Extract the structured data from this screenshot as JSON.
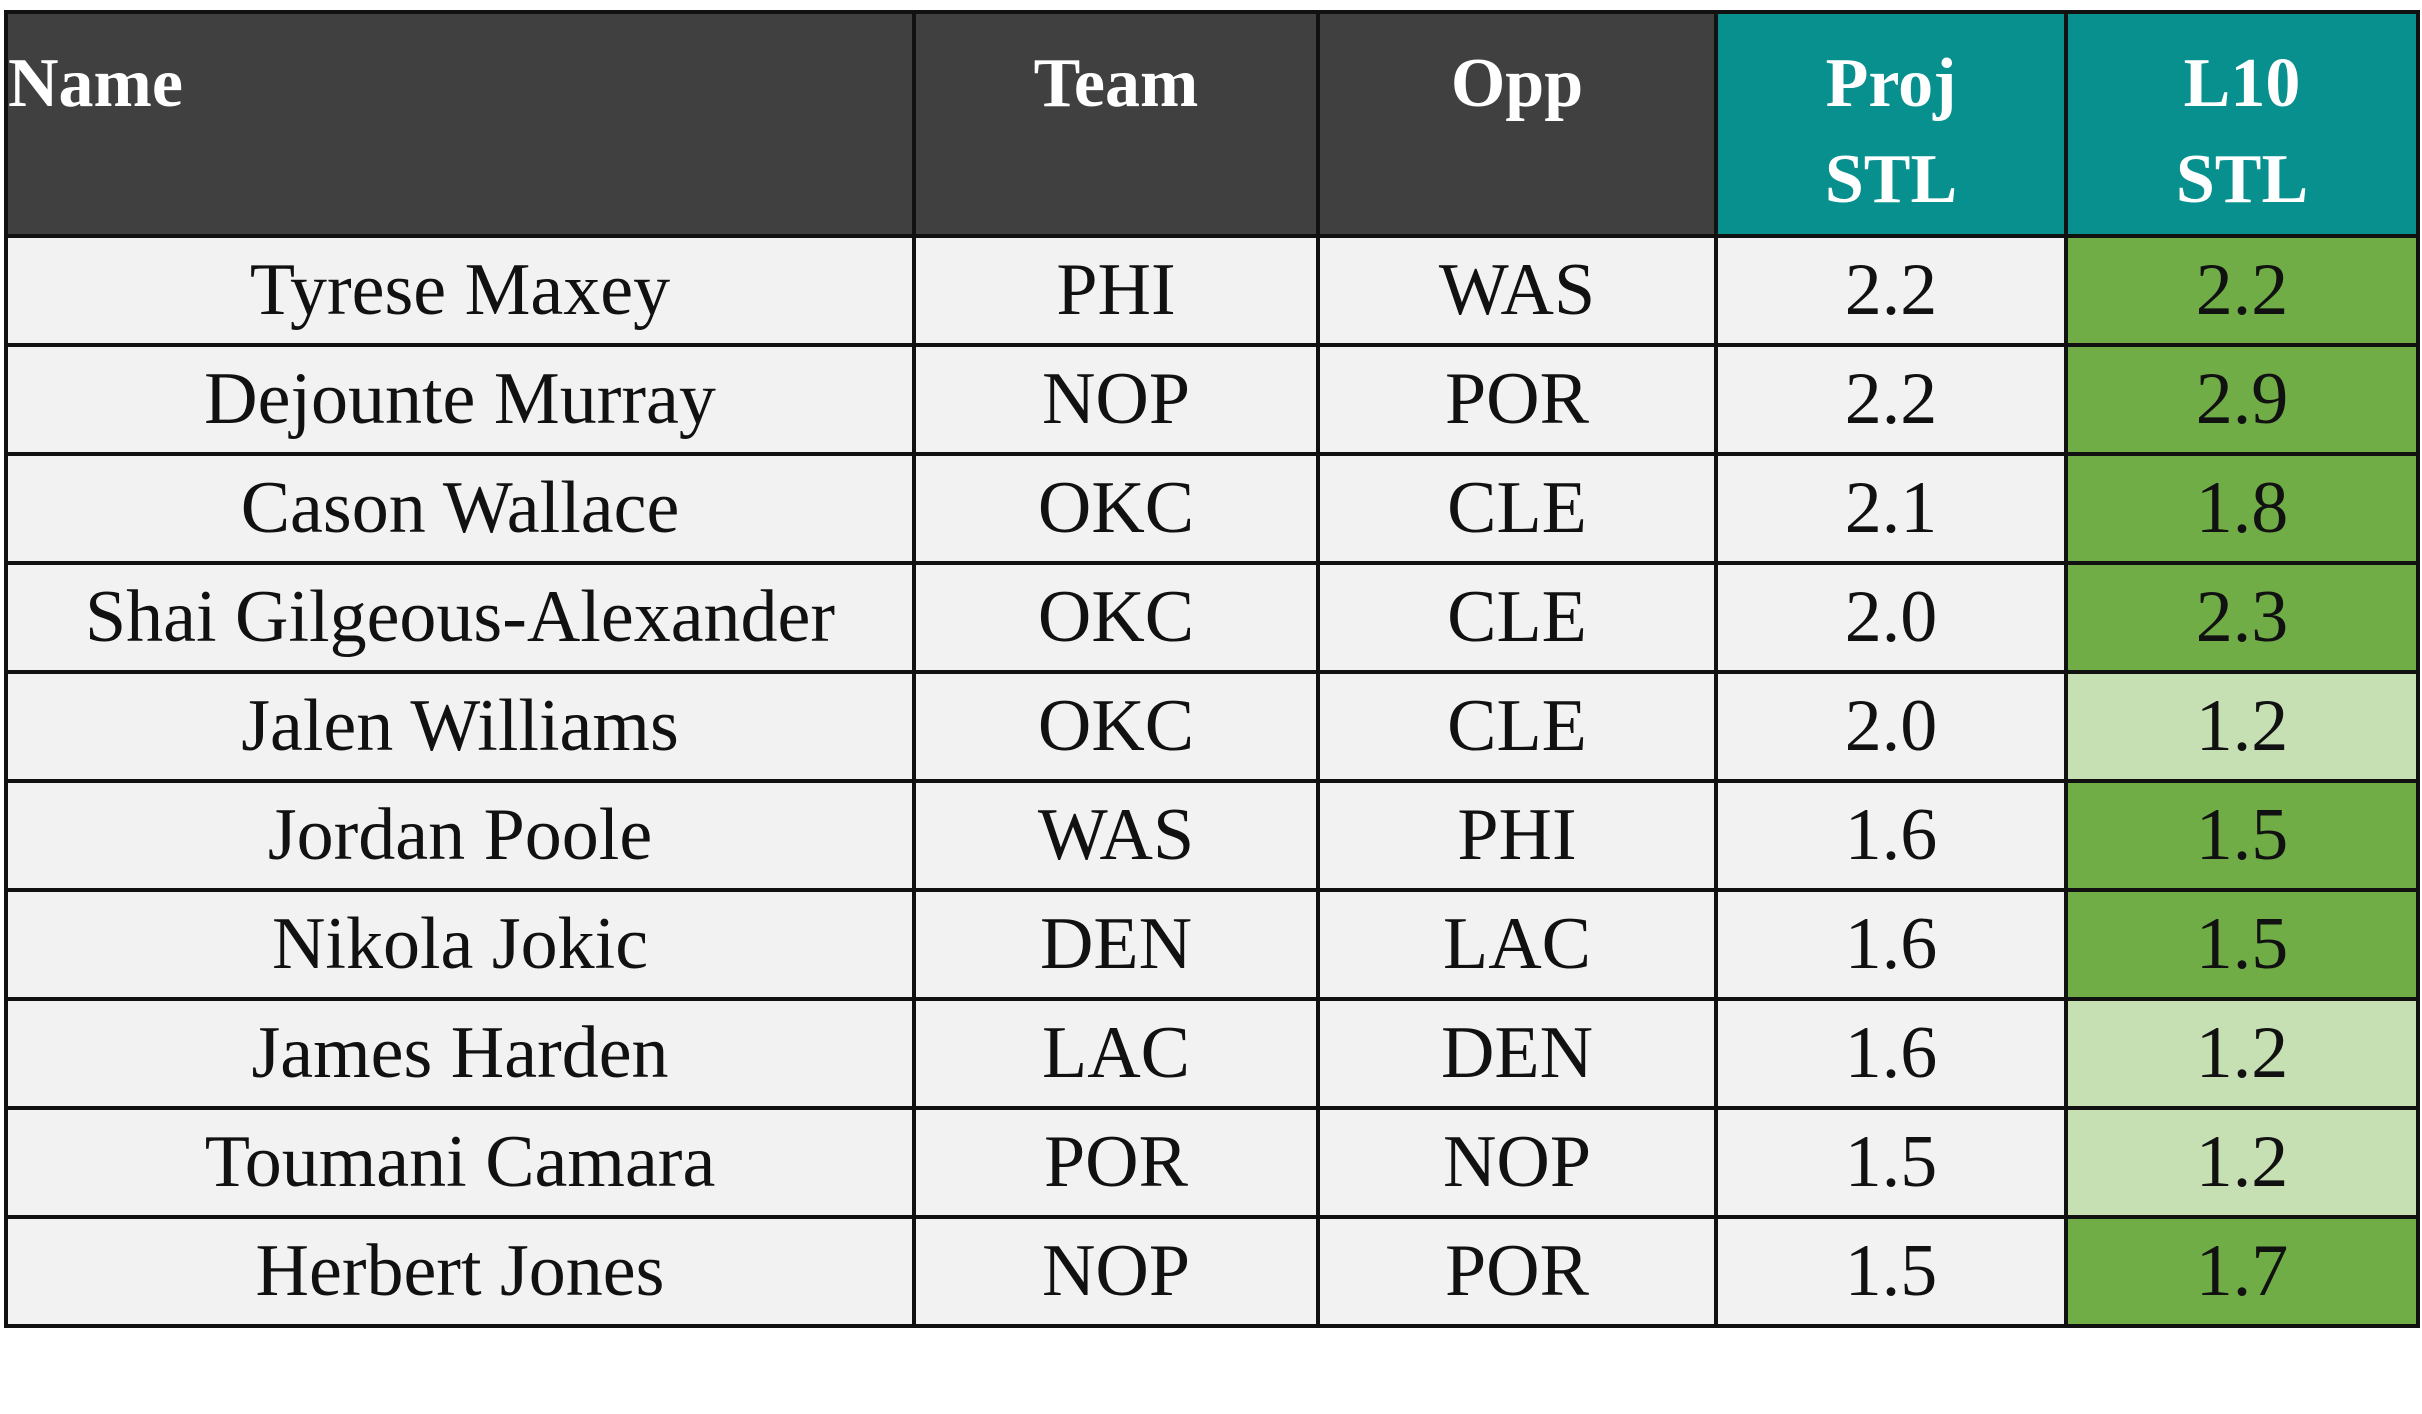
{
  "chart_data": {
    "type": "table",
    "columns": [
      "Name",
      "Team",
      "Opp",
      "Proj STL",
      "L10 STL"
    ],
    "header_lines": {
      "proj": [
        "Proj",
        "STL"
      ],
      "l10": [
        "L10",
        "STL"
      ]
    },
    "rows": [
      {
        "name": "Tyrese Maxey",
        "team": "PHI",
        "opp": "WAS",
        "proj": "2.2",
        "l10": "2.2",
        "l10_color": "#70ad47"
      },
      {
        "name": "Dejounte Murray",
        "team": "NOP",
        "opp": "POR",
        "proj": "2.2",
        "l10": "2.9",
        "l10_color": "#70ad47"
      },
      {
        "name": "Cason Wallace",
        "team": "OKC",
        "opp": "CLE",
        "proj": "2.1",
        "l10": "1.8",
        "l10_color": "#70ad47"
      },
      {
        "name": "Shai Gilgeous-Alexander",
        "team": "OKC",
        "opp": "CLE",
        "proj": "2.0",
        "l10": "2.3",
        "l10_color": "#70ad47"
      },
      {
        "name": "Jalen Williams",
        "team": "OKC",
        "opp": "CLE",
        "proj": "2.0",
        "l10": "1.2",
        "l10_color": "#c6e0b4"
      },
      {
        "name": "Jordan Poole",
        "team": "WAS",
        "opp": "PHI",
        "proj": "1.6",
        "l10": "1.5",
        "l10_color": "#70ad47"
      },
      {
        "name": "Nikola Jokic",
        "team": "DEN",
        "opp": "LAC",
        "proj": "1.6",
        "l10": "1.5",
        "l10_color": "#70ad47"
      },
      {
        "name": "James Harden",
        "team": "LAC",
        "opp": "DEN",
        "proj": "1.6",
        "l10": "1.2",
        "l10_color": "#c6e0b4"
      },
      {
        "name": "Toumani Camara",
        "team": "POR",
        "opp": "NOP",
        "proj": "1.5",
        "l10": "1.2",
        "l10_color": "#c6e0b4"
      },
      {
        "name": "Herbert Jones",
        "team": "NOP",
        "opp": "POR",
        "proj": "1.5",
        "l10": "1.7",
        "l10_color": "#70ad47"
      }
    ]
  },
  "colors": {
    "header_dark": "#404040",
    "header_teal": "#07908e",
    "cell_light_gray": "#f2f2f2",
    "stat_green": "#70ad47",
    "stat_light_green": "#c6e0b4",
    "border": "#111111"
  }
}
